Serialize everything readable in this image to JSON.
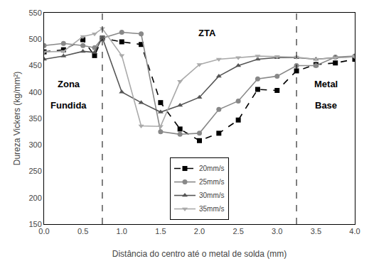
{
  "chart_data": {
    "type": "line",
    "xlabel": "Distância do centro até o metal de solda (mm)",
    "ylabel": "Dureza Vickers (kg/mm²)",
    "x": [
      0.0,
      0.25,
      0.5,
      0.65,
      0.75,
      1.0,
      1.25,
      1.5,
      1.75,
      2.0,
      2.25,
      2.5,
      2.75,
      3.0,
      3.25,
      3.5,
      3.75,
      4.0
    ],
    "series": [
      {
        "name": "20mm/s",
        "color": "#000000",
        "marker": "square",
        "line_style": "dash",
        "values": [
          476,
          480,
          499,
          469,
          502,
          495,
          490,
          380,
          330,
          308,
          322,
          347,
          405,
          403,
          440,
          452,
          455,
          462
        ]
      },
      {
        "name": "25mm/s",
        "color": "#888888",
        "marker": "circle",
        "line_style": "solid",
        "values": [
          488,
          492,
          488,
          484,
          502,
          513,
          510,
          325,
          320,
          322,
          367,
          383,
          425,
          430,
          450,
          450,
          466,
          468
        ]
      },
      {
        "name": "30mm/s",
        "color": "#555555",
        "marker": "triangle-up",
        "line_style": "solid",
        "values": [
          462,
          468,
          477,
          475,
          503,
          400,
          380,
          362,
          375,
          390,
          430,
          450,
          462,
          465,
          465,
          462,
          465,
          467
        ]
      },
      {
        "name": "35mm/s",
        "color": "#aaaaaa",
        "marker": "triangle-down",
        "line_style": "solid",
        "values": [
          476,
          477,
          505,
          510,
          520,
          469,
          336,
          335,
          420,
          452,
          462,
          465,
          468,
          467,
          466,
          462,
          465,
          467
        ]
      }
    ],
    "vlines": [
      0.75,
      3.25
    ],
    "annotations": [
      {
        "text": "Zona",
        "x": 0.32,
        "y": 415
      },
      {
        "text": "Fundida",
        "x": 0.32,
        "y": 375
      },
      {
        "text": "ZTA",
        "x": 2.1,
        "y": 512
      },
      {
        "text": "Metal",
        "x": 3.63,
        "y": 415
      },
      {
        "text": "Base",
        "x": 3.63,
        "y": 375
      }
    ],
    "xlim": [
      0.0,
      4.0
    ],
    "ylim": [
      150,
      550
    ],
    "xticks": [
      {
        "value": 0.0,
        "label": "0.0"
      },
      0.5,
      {
        "value": 1.0,
        "label": "1.0"
      },
      1.5,
      {
        "value": 2.0,
        "label": "2.0"
      },
      2.5,
      {
        "value": 3.0,
        "label": "3.0"
      },
      3.5,
      {
        "value": 4.0,
        "label": "4.0"
      }
    ],
    "yticks": [
      150,
      200,
      250,
      300,
      350,
      400,
      450,
      500,
      550
    ],
    "grid": false,
    "legend": "lower center"
  }
}
